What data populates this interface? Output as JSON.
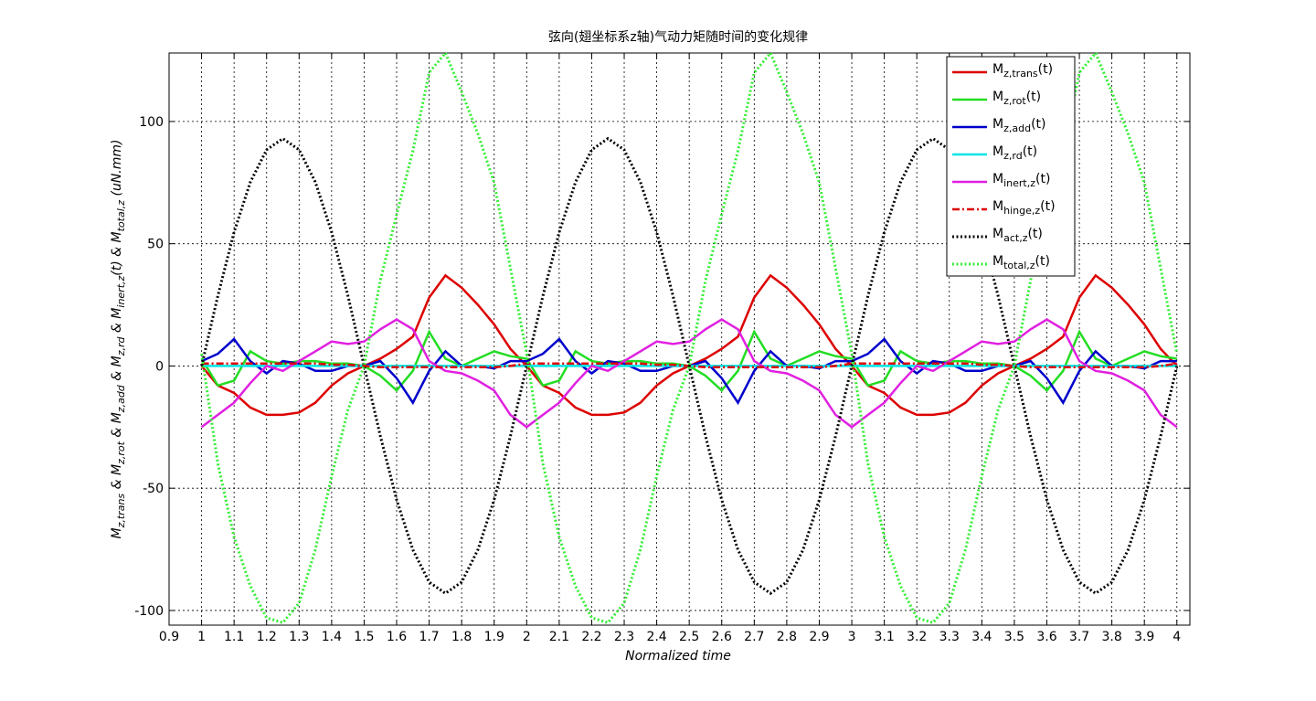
{
  "chart_data": {
    "type": "line",
    "title": "弦向(翅坐标系z轴)气动力矩随时间的变化规律",
    "xlabel": "Normalized time",
    "ylabel": "Mz,trans & Mz,rot & Mz,add & Mz,rd & Minert,z(t) & Mtotal,z  (uN.mm)",
    "x": [
      1,
      1.05,
      1.1,
      1.15,
      1.2,
      1.25,
      1.3,
      1.35,
      1.4,
      1.45,
      1.5,
      1.55,
      1.6,
      1.65,
      1.7,
      1.75,
      1.8,
      1.85,
      1.9,
      1.95,
      2,
      2.05,
      2.1,
      2.15,
      2.2,
      2.25,
      2.3,
      2.35,
      2.4,
      2.45,
      2.5,
      2.55,
      2.6,
      2.65,
      2.7,
      2.75,
      2.8,
      2.85,
      2.9,
      2.95,
      3,
      3.05,
      3.1,
      3.15,
      3.2,
      3.25,
      3.3,
      3.35,
      3.4,
      3.45,
      3.5,
      3.55,
      3.6,
      3.65,
      3.7,
      3.75,
      3.8,
      3.85,
      3.9,
      3.95,
      4
    ],
    "series": [
      {
        "name": "Mz,trans(t)",
        "color": "#dd0000",
        "linestyle": "solid",
        "values": [
          0,
          -8,
          -11,
          -17,
          -20,
          -20,
          -19,
          -15,
          -8,
          -3,
          0,
          3,
          7,
          12,
          28,
          37,
          32,
          25,
          17,
          7,
          0,
          -8,
          -11,
          -17,
          -20,
          -20,
          -19,
          -15,
          -8,
          -3,
          0,
          3,
          7,
          12,
          28,
          37,
          32,
          25,
          17,
          7,
          0,
          -8,
          -11,
          -17,
          -20,
          -20,
          -19,
          -15,
          -8,
          -3,
          0,
          3,
          7,
          12,
          28,
          37,
          32,
          25,
          17,
          7,
          0
        ]
      },
      {
        "name": "Mz,rot(t)",
        "color": "#22dd22",
        "linestyle": "solid",
        "values": [
          3,
          -8,
          -6,
          6,
          2,
          1,
          2,
          2,
          1,
          1,
          0,
          -4,
          -10,
          -2,
          14,
          3,
          0,
          3,
          6,
          4,
          3,
          -8,
          -6,
          6,
          2,
          1,
          2,
          2,
          1,
          1,
          0,
          -4,
          -10,
          -2,
          14,
          3,
          0,
          3,
          6,
          4,
          3,
          -8,
          -6,
          6,
          2,
          1,
          2,
          2,
          1,
          1,
          0,
          -4,
          -10,
          -2,
          14,
          3,
          0,
          3,
          6,
          4,
          3
        ]
      },
      {
        "name": "Mz,add(t)",
        "color": "#0000cc",
        "linestyle": "solid",
        "values": [
          2,
          5,
          11,
          2,
          -3,
          2,
          1,
          -2,
          -2,
          0,
          0,
          2,
          -5,
          -15,
          -2,
          6,
          0,
          0,
          -1,
          2,
          2,
          5,
          11,
          2,
          -3,
          2,
          1,
          -2,
          -2,
          0,
          0,
          2,
          -5,
          -15,
          -2,
          6,
          0,
          0,
          -1,
          2,
          2,
          5,
          11,
          2,
          -3,
          2,
          1,
          -2,
          -2,
          0,
          0,
          2,
          -5,
          -15,
          -2,
          6,
          0,
          0,
          -1,
          2,
          2
        ]
      },
      {
        "name": "Mz,rd(t)",
        "color": "#00e5e5",
        "linestyle": "solid",
        "values": [
          0,
          0,
          0,
          0,
          0,
          0,
          0,
          0,
          0,
          0,
          0,
          0,
          0,
          0,
          0,
          0,
          0,
          0,
          0,
          0,
          0,
          0,
          0,
          0,
          0,
          0,
          0,
          0,
          0,
          0,
          0,
          0,
          0,
          0,
          0,
          0,
          0,
          0,
          0,
          0,
          0,
          0,
          0,
          0,
          0,
          0,
          0,
          0,
          0,
          0,
          0,
          0,
          0,
          0,
          0,
          0,
          0,
          0,
          0,
          0,
          0
        ]
      },
      {
        "name": "Minert,z(t)",
        "color": "#e020e0",
        "linestyle": "solid",
        "values": [
          -25,
          -20,
          -15,
          -7,
          0,
          -2,
          2,
          6,
          10,
          9,
          10,
          15,
          19,
          15,
          2,
          -2,
          -3,
          -6,
          -10,
          -20,
          -25,
          -20,
          -15,
          -7,
          0,
          -2,
          2,
          6,
          10,
          9,
          10,
          15,
          19,
          15,
          2,
          -2,
          -3,
          -6,
          -10,
          -20,
          -25,
          -20,
          -15,
          -7,
          0,
          -2,
          2,
          6,
          10,
          9,
          10,
          15,
          19,
          15,
          2,
          -2,
          -3,
          -6,
          -10,
          -20,
          -25
        ]
      },
      {
        "name": "Mhinge,z(t)",
        "color": "#dd0000",
        "linestyle": "dashdot",
        "values": [
          1,
          1,
          1,
          1,
          1,
          1,
          1,
          1,
          0.5,
          0.5,
          0,
          -0.5,
          -0.5,
          -0.5,
          -0.5,
          -0.5,
          -0.5,
          -0.5,
          -0.5,
          0,
          1,
          1,
          1,
          1,
          1,
          1,
          1,
          1,
          0.5,
          0.5,
          0,
          -0.5,
          -0.5,
          -0.5,
          -0.5,
          -0.5,
          -0.5,
          -0.5,
          -0.5,
          0,
          1,
          1,
          1,
          1,
          1,
          1,
          1,
          1,
          0.5,
          0.5,
          0,
          -0.5,
          -0.5,
          -0.5,
          -0.5,
          -0.5,
          -0.5,
          -0.5,
          -0.5,
          0,
          1
        ]
      },
      {
        "name": "Mact,z(t)",
        "color": "#000000",
        "linestyle": "dotted",
        "values": [
          0,
          28.7,
          54.7,
          75.2,
          88.4,
          93,
          88.4,
          75.2,
          54.7,
          28.7,
          0,
          -28.7,
          -54.7,
          -75.2,
          -88.4,
          -93,
          -88.4,
          -75.2,
          -54.7,
          -28.7,
          0,
          28.7,
          54.7,
          75.2,
          88.4,
          93,
          88.4,
          75.2,
          54.7,
          28.7,
          0,
          -28.7,
          -54.7,
          -75.2,
          -88.4,
          -93,
          -88.4,
          -75.2,
          -54.7,
          -28.7,
          0,
          28.7,
          54.7,
          75.2,
          88.4,
          93,
          88.4,
          75.2,
          54.7,
          28.7,
          0,
          -28.7,
          -54.7,
          -75.2,
          -88.4,
          -93,
          -88.4,
          -75.2,
          -54.7,
          -28.7,
          0
        ]
      },
      {
        "name": "Mtotal,z(t)",
        "color": "#33ee33",
        "linestyle": "dotted",
        "values": [
          5,
          -40,
          -70,
          -90,
          -103,
          -105,
          -97,
          -75,
          -45,
          -18,
          0,
          35,
          62,
          88,
          120,
          128,
          112,
          95,
          75,
          40,
          5,
          -40,
          -70,
          -90,
          -103,
          -105,
          -97,
          -75,
          -45,
          -18,
          0,
          35,
          62,
          88,
          120,
          128,
          112,
          95,
          75,
          40,
          5,
          -40,
          -70,
          -90,
          -103,
          -105,
          -97,
          -75,
          -45,
          -18,
          0,
          35,
          62,
          88,
          120,
          128,
          112,
          95,
          75,
          40,
          5
        ]
      }
    ],
    "xlim": [
      0.9,
      4.04
    ],
    "ylim": [
      -106,
      128
    ],
    "xticks": [
      0.9,
      1,
      1.1,
      1.2,
      1.3,
      1.4,
      1.5,
      1.6,
      1.7,
      1.8,
      1.9,
      2,
      2.1,
      2.2,
      2.3,
      2.4,
      2.5,
      2.6,
      2.7,
      2.8,
      2.9,
      3,
      3.1,
      3.2,
      3.3,
      3.4,
      3.5,
      3.6,
      3.7,
      3.8,
      3.9,
      4
    ],
    "yticks": [
      -100,
      -50,
      0,
      50,
      100
    ],
    "grid": true,
    "legend": "top right"
  }
}
